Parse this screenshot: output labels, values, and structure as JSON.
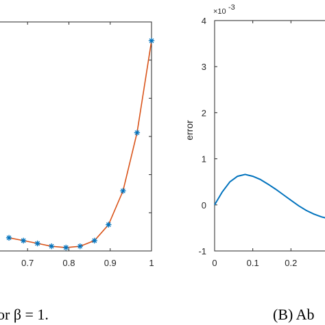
{
  "chart_data": [
    {
      "type": "line",
      "title": "",
      "xlabel": "",
      "ylabel": "",
      "xlim": [
        0.63,
        1.0
      ],
      "x_ticks": [
        "0.7",
        "0.8",
        "0.9",
        "1"
      ],
      "x_tick_values": [
        0.7,
        0.8,
        0.9,
        1.0
      ],
      "grid": false,
      "caption": "or β = 1.",
      "series": [
        {
          "line_color": "#D95319",
          "marker_color": "#0072BD",
          "marker": "asterisk",
          "x": [
            0.655,
            0.69,
            0.724,
            0.758,
            0.793,
            0.827,
            0.862,
            0.896,
            0.931,
            0.965,
            1.0
          ],
          "y": [
            0.07,
            0.055,
            0.04,
            0.025,
            0.018,
            0.025,
            0.055,
            0.14,
            0.32,
            0.63,
            1.12
          ]
        }
      ]
    },
    {
      "type": "line",
      "title": "",
      "xlabel": "",
      "ylabel": "error",
      "y_exponent_label": "×10",
      "y_exponent_power": "-3",
      "ylim": [
        -1,
        4
      ],
      "y_ticks": [
        "-1",
        "0",
        "1",
        "2",
        "3",
        "4"
      ],
      "y_tick_values": [
        -1,
        0,
        1,
        2,
        3,
        4
      ],
      "xlim": [
        0,
        0.3
      ],
      "x_ticks": [
        "0",
        "0.1",
        "0.2"
      ],
      "x_tick_values": [
        0,
        0.1,
        0.2
      ],
      "grid": false,
      "caption": "(B) Ab",
      "series": [
        {
          "line_color": "#0072BD",
          "x": [
            0.0,
            0.02,
            0.04,
            0.06,
            0.08,
            0.1,
            0.12,
            0.14,
            0.16,
            0.18,
            0.2,
            0.22,
            0.24,
            0.26,
            0.28,
            0.3
          ],
          "y": [
            0.0,
            0.28,
            0.5,
            0.62,
            0.66,
            0.62,
            0.55,
            0.45,
            0.34,
            0.22,
            0.1,
            -0.02,
            -0.12,
            -0.2,
            -0.26,
            -0.3
          ]
        }
      ]
    }
  ]
}
